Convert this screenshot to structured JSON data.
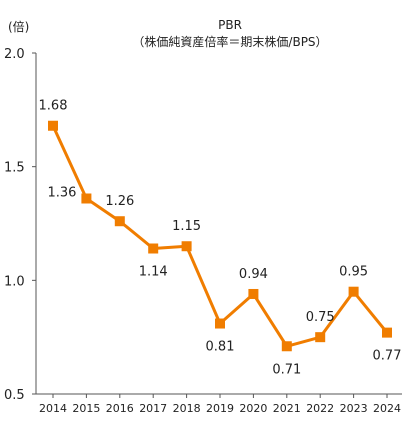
{
  "chart_data": {
    "type": "line",
    "title": "PBR",
    "subtitle": "（株価純資産倍率＝期末株価/BPS）",
    "ylabel": "(倍)",
    "xlabel": "",
    "x": [
      "2014",
      "2015",
      "2016",
      "2017",
      "2018",
      "2019",
      "2020",
      "2021",
      "2022",
      "2023",
      "2024"
    ],
    "series": [
      {
        "values": [
          1.68,
          1.36,
          1.26,
          1.14,
          1.15,
          0.81,
          0.94,
          0.71,
          0.75,
          0.95,
          0.77
        ]
      }
    ],
    "data_labels": [
      "1.68",
      "1.36",
      "1.26",
      "1.14",
      "1.15",
      "0.81",
      "0.94",
      "0.71",
      "0.75",
      "0.95",
      "0.77"
    ],
    "yticks": [
      "0.5",
      "1.0",
      "1.5",
      "2.0"
    ],
    "ytick_values": [
      0.5,
      1.0,
      1.5,
      2.0
    ],
    "ylim": [
      0.5,
      2.0
    ],
    "grid": false,
    "legend": "none",
    "color": "#f07d00"
  }
}
